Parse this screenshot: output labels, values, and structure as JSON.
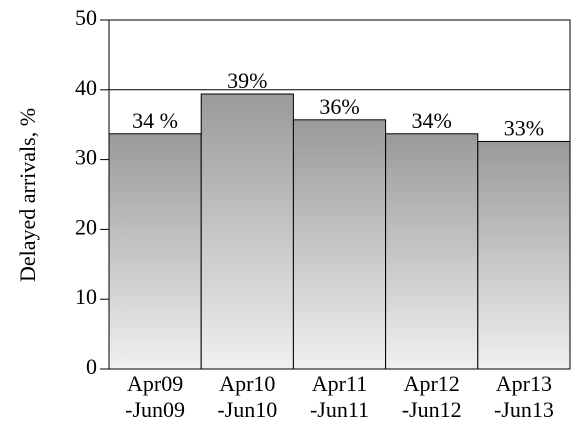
{
  "chart_data": {
    "type": "bar",
    "y_label": "Delayed arrivals, %",
    "categories": [
      "Apr09\n-Jun09",
      "Apr10\n-Jun10",
      "Apr11\n-Jun11",
      "Apr12\n-Jun12",
      "Apr13\n-Jun13"
    ],
    "values": [
      33.7,
      39.4,
      35.7,
      33.7,
      32.6
    ],
    "value_labels": [
      "34 %",
      "39%",
      "36%",
      "34%",
      "33%"
    ],
    "color": "#9a9a9a",
    "ylim": [
      0,
      50
    ],
    "yticks": [
      0,
      10,
      20,
      30,
      40,
      50
    ],
    "grid": true
  }
}
